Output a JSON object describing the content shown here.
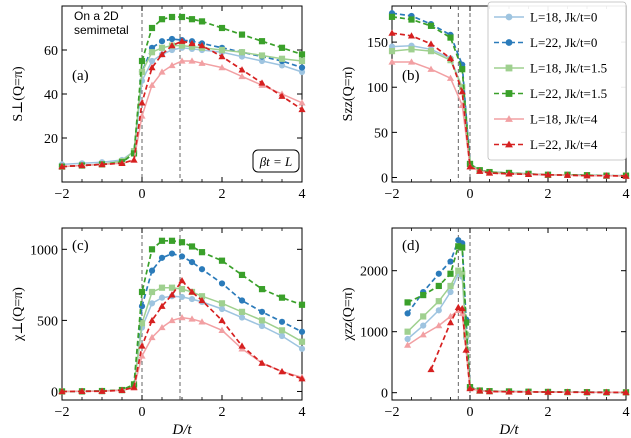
{
  "figure": {
    "annotation_line1": "On a 2D",
    "annotation_line2": "semimetal",
    "box_label": "βt = L"
  },
  "chart_data": [
    {
      "type": "line",
      "panel_label": "(a)",
      "ylabel": "S⊥(Q=π)",
      "xlabel": "",
      "xlim": [
        -2,
        4
      ],
      "ylim": [
        0,
        80
      ],
      "xticks": [
        "−2",
        "0",
        "2",
        "4"
      ],
      "yticks": [
        "20",
        "40",
        "60"
      ],
      "yticks_values": [
        20,
        40,
        60
      ],
      "vlines": [
        0,
        0.95
      ],
      "series": [
        {
          "name": "L=18, Jk/t=0",
          "color": "#9ec4e0",
          "marker": "circle",
          "dash": false,
          "x": [
            -2,
            -1.5,
            -1,
            -0.5,
            -0.2,
            0,
            0.25,
            0.5,
            0.75,
            1.0,
            1.25,
            1.5,
            2,
            2.5,
            3,
            3.5,
            4
          ],
          "y": [
            8,
            8.5,
            9,
            10,
            14,
            46,
            55,
            58,
            60,
            61,
            60.5,
            60,
            59,
            57,
            55,
            53,
            50
          ]
        },
        {
          "name": "L=22, Jk/t=0",
          "color": "#2b7bba",
          "marker": "circle",
          "dash": true,
          "x": [
            -2,
            -1.5,
            -1,
            -0.5,
            -0.2,
            0,
            0.25,
            0.5,
            0.75,
            1.0,
            1.25,
            1.5,
            2,
            2.5,
            3,
            3.5,
            4
          ],
          "y": [
            7,
            7.5,
            8,
            9,
            13,
            50,
            61,
            64,
            65,
            64.5,
            64,
            63,
            61,
            59,
            57,
            55,
            52
          ]
        },
        {
          "name": "L=18, Jk/t=1.5",
          "color": "#9fd08f",
          "marker": "square",
          "dash": false,
          "x": [
            -2,
            -1.5,
            -1,
            -0.5,
            -0.2,
            0,
            0.25,
            0.5,
            0.75,
            1.0,
            1.25,
            1.5,
            2,
            2.5,
            3,
            3.5,
            4
          ],
          "y": [
            7,
            7.5,
            8,
            9.5,
            14,
            50,
            59,
            61,
            62,
            62,
            61.5,
            61,
            60,
            59,
            57.5,
            56,
            55
          ]
        },
        {
          "name": "L=22, Jk/t=1.5",
          "color": "#3aa02a",
          "marker": "square",
          "dash": true,
          "x": [
            -2,
            -1.5,
            -1,
            -0.5,
            -0.2,
            0,
            0.25,
            0.5,
            0.75,
            1.0,
            1.25,
            1.5,
            2,
            2.5,
            3,
            3.5,
            4
          ],
          "y": [
            7,
            7.5,
            8,
            9,
            13,
            55,
            70,
            74,
            75,
            75,
            74,
            73,
            70,
            67,
            64,
            61,
            58
          ]
        },
        {
          "name": "L=18, Jk/t=4",
          "color": "#f2a0a3",
          "marker": "triangle",
          "dash": false,
          "x": [
            -2,
            -1.5,
            -1,
            -0.5,
            -0.2,
            0,
            0.25,
            0.5,
            0.75,
            1.0,
            1.25,
            1.5,
            2,
            2.5,
            3,
            3.5,
            4
          ],
          "y": [
            7,
            7.5,
            8,
            8.5,
            10,
            30,
            44,
            50,
            53,
            55,
            55,
            54,
            52,
            48,
            44,
            40,
            36
          ]
        },
        {
          "name": "L=22, Jk/t=4",
          "color": "#d62020",
          "marker": "triangle",
          "dash": true,
          "x": [
            -2,
            -1.5,
            -1,
            -0.5,
            -0.2,
            0,
            0.25,
            0.5,
            0.75,
            1.0,
            1.25,
            1.5,
            2,
            2.5,
            3,
            3.5,
            4
          ],
          "y": [
            7,
            7.5,
            8,
            8.5,
            10,
            36,
            52,
            58,
            62,
            64,
            63,
            62,
            57,
            51,
            45,
            39,
            33
          ]
        }
      ]
    },
    {
      "type": "line",
      "panel_label": "(b)",
      "ylabel": "Szz(Q=π)",
      "xlabel": "",
      "xlim": [
        -2,
        4
      ],
      "ylim": [
        -5,
        190
      ],
      "xticks": [
        "−2",
        "0",
        "2",
        "4"
      ],
      "yticks": [
        "0",
        "50",
        "100",
        "150"
      ],
      "yticks_values": [
        0,
        50,
        100,
        150
      ],
      "vlines": [
        -0.3,
        0
      ],
      "series": [
        {
          "name": "L=18, Jk/t=0",
          "color": "#9ec4e0",
          "marker": "circle",
          "dash": false,
          "x": [
            -2,
            -1.5,
            -1,
            -0.5,
            -0.2,
            0,
            0.25,
            0.5,
            1,
            1.5,
            2,
            2.5,
            3,
            3.5,
            4
          ],
          "y": [
            145,
            146,
            142,
            132,
            100,
            15,
            8,
            6,
            5,
            4,
            3,
            3,
            2.5,
            2,
            2
          ]
        },
        {
          "name": "L=22, Jk/t=0",
          "color": "#2b7bba",
          "marker": "circle",
          "dash": true,
          "x": [
            -2,
            -1.5,
            -1,
            -0.5,
            -0.2,
            0,
            0.25,
            0.5,
            1,
            1.5,
            2,
            2.5,
            3,
            3.5,
            4
          ],
          "y": [
            182,
            179,
            170,
            158,
            125,
            15,
            8,
            6,
            5,
            4,
            3,
            3,
            2.5,
            2,
            2
          ]
        },
        {
          "name": "L=18, Jk/t=1.5",
          "color": "#9fd08f",
          "marker": "square",
          "dash": false,
          "x": [
            -2,
            -1.5,
            -1,
            -0.5,
            -0.2,
            0,
            0.25,
            0.5,
            1,
            1.5,
            2,
            2.5,
            3,
            3.5,
            4
          ],
          "y": [
            140,
            142,
            140,
            130,
            100,
            15,
            8,
            6,
            5,
            4,
            3,
            3,
            2.5,
            2,
            2
          ]
        },
        {
          "name": "L=22, Jk/t=1.5",
          "color": "#3aa02a",
          "marker": "square",
          "dash": true,
          "x": [
            -2,
            -1.5,
            -1,
            -0.5,
            -0.2,
            0,
            0.25,
            0.5,
            1,
            1.5,
            2,
            2.5,
            3,
            3.5,
            4
          ],
          "y": [
            178,
            175,
            168,
            155,
            120,
            15,
            8,
            6,
            5,
            4,
            3,
            3,
            2.5,
            2,
            2
          ]
        },
        {
          "name": "L=18, Jk/t=4",
          "color": "#f2a0a3",
          "marker": "triangle",
          "dash": false,
          "x": [
            -2,
            -1.5,
            -1,
            -0.5,
            -0.2,
            0,
            0.25,
            0.5,
            1,
            1.5,
            2,
            2.5,
            3,
            3.5,
            4
          ],
          "y": [
            128,
            128,
            120,
            110,
            80,
            12,
            7,
            5,
            4,
            3.5,
            3,
            2.5,
            2,
            2,
            1.5
          ]
        },
        {
          "name": "L=22, Jk/t=4",
          "color": "#d62020",
          "marker": "triangle",
          "dash": true,
          "x": [
            -2,
            -1.5,
            -1,
            -0.5,
            -0.2,
            0,
            0.25,
            0.5,
            1,
            1.5,
            2,
            2.5,
            3,
            3.5,
            4
          ],
          "y": [
            160,
            157,
            148,
            132,
            95,
            12,
            7,
            5,
            4,
            3.5,
            3,
            2.5,
            2,
            2,
            1.5
          ]
        }
      ]
    },
    {
      "type": "line",
      "panel_label": "(c)",
      "ylabel": "χ⊥(Q=π)",
      "xlabel": "D/t",
      "xlim": [
        -2,
        4
      ],
      "ylim": [
        -60,
        1150
      ],
      "xticks": [
        "−2",
        "0",
        "2",
        "4"
      ],
      "yticks": [
        "0",
        "500",
        "1000"
      ],
      "yticks_values": [
        0,
        500,
        1000
      ],
      "vlines": [
        0,
        0.95
      ],
      "series": [
        {
          "name": "L=18, Jk/t=0",
          "color": "#9ec4e0",
          "marker": "circle",
          "dash": false,
          "x": [
            -2,
            -1.5,
            -1,
            -0.5,
            -0.2,
            0,
            0.25,
            0.5,
            0.75,
            1.0,
            1.25,
            1.5,
            2,
            2.5,
            3,
            3.5,
            4
          ],
          "y": [
            0,
            1,
            3,
            10,
            40,
            450,
            620,
            660,
            670,
            665,
            650,
            630,
            580,
            520,
            460,
            390,
            300
          ]
        },
        {
          "name": "L=22, Jk/t=0",
          "color": "#2b7bba",
          "marker": "circle",
          "dash": true,
          "x": [
            -2,
            -1.5,
            -1,
            -0.5,
            -0.2,
            0,
            0.25,
            0.5,
            0.75,
            1.0,
            1.25,
            1.5,
            2,
            2.5,
            3,
            3.5,
            4
          ],
          "y": [
            0,
            1,
            3,
            10,
            45,
            600,
            850,
            940,
            970,
            950,
            910,
            860,
            760,
            640,
            560,
            490,
            420
          ]
        },
        {
          "name": "L=18, Jk/t=1.5",
          "color": "#9fd08f",
          "marker": "square",
          "dash": false,
          "x": [
            -2,
            -1.5,
            -1,
            -0.5,
            -0.2,
            0,
            0.25,
            0.5,
            0.75,
            1.0,
            1.25,
            1.5,
            2,
            2.5,
            3,
            3.5,
            4
          ],
          "y": [
            0,
            1,
            3,
            10,
            40,
            480,
            700,
            730,
            730,
            720,
            700,
            670,
            620,
            560,
            500,
            430,
            350
          ]
        },
        {
          "name": "L=22, Jk/t=1.5",
          "color": "#3aa02a",
          "marker": "square",
          "dash": true,
          "x": [
            -2,
            -1.5,
            -1,
            -0.5,
            -0.2,
            0,
            0.25,
            0.5,
            0.75,
            1.0,
            1.25,
            1.5,
            2,
            2.5,
            3,
            3.5,
            4
          ],
          "y": [
            0,
            1,
            3,
            10,
            50,
            700,
            1000,
            1060,
            1060,
            1050,
            1020,
            980,
            920,
            820,
            720,
            660,
            610
          ]
        },
        {
          "name": "L=18, Jk/t=4",
          "color": "#f2a0a3",
          "marker": "triangle",
          "dash": false,
          "x": [
            -2,
            -1.5,
            -1,
            -0.5,
            -0.2,
            0,
            0.25,
            0.5,
            0.75,
            1.0,
            1.25,
            1.5,
            2,
            2.5,
            3,
            3.5,
            4
          ],
          "y": [
            0,
            1,
            2,
            8,
            25,
            250,
            380,
            450,
            500,
            520,
            510,
            490,
            430,
            300,
            200,
            140,
            100
          ]
        },
        {
          "name": "L=22, Jk/t=4",
          "color": "#d62020",
          "marker": "triangle",
          "dash": true,
          "x": [
            -2,
            -1.5,
            -1,
            -0.5,
            -0.2,
            0,
            0.25,
            0.5,
            0.75,
            1.0,
            1.25,
            1.5,
            2,
            2.5,
            3,
            3.5,
            4
          ],
          "y": [
            0,
            1,
            2,
            8,
            30,
            320,
            500,
            600,
            680,
            780,
            700,
            640,
            500,
            320,
            200,
            140,
            90
          ]
        }
      ]
    },
    {
      "type": "line",
      "panel_label": "(d)",
      "ylabel": "χzz(Q=π)",
      "xlabel": "D/t",
      "xlim": [
        -2,
        4
      ],
      "ylim": [
        -120,
        2700
      ],
      "xticks": [
        "−2",
        "0",
        "2",
        "4"
      ],
      "yticks": [
        "0",
        "1000",
        "2000"
      ],
      "yticks_values": [
        0,
        1000,
        2000
      ],
      "vlines": [
        -0.3,
        0
      ],
      "series": [
        {
          "name": "L=18, Jk/t=0",
          "color": "#9ec4e0",
          "marker": "circle",
          "dash": false,
          "x": [
            -1.6,
            -1.2,
            -0.8,
            -0.5,
            -0.3,
            -0.2,
            -0.1,
            0,
            0.25,
            0.5,
            1,
            1.5,
            2,
            2.5,
            3,
            3.5,
            4
          ],
          "y": [
            880,
            1100,
            1350,
            1650,
            1950,
            1900,
            900,
            90,
            35,
            25,
            20,
            15,
            12,
            10,
            8,
            6,
            5
          ]
        },
        {
          "name": "L=22, Jk/t=0",
          "color": "#2b7bba",
          "marker": "circle",
          "dash": true,
          "x": [
            -1.6,
            -1.2,
            -0.8,
            -0.5,
            -0.3,
            -0.2,
            -0.1,
            0,
            0.25,
            0.5,
            1,
            1.5,
            2,
            2.5,
            3,
            3.5,
            4
          ],
          "y": [
            1300,
            1650,
            1950,
            2150,
            2500,
            2450,
            1200,
            90,
            35,
            25,
            20,
            15,
            12,
            10,
            8,
            6,
            5
          ]
        },
        {
          "name": "L=18, Jk/t=1.5",
          "color": "#9fd08f",
          "marker": "square",
          "dash": false,
          "x": [
            -1.6,
            -1.2,
            -0.8,
            -0.5,
            -0.3,
            -0.2,
            -0.1,
            0,
            0.25,
            0.5,
            1,
            1.5,
            2,
            2.5,
            3,
            3.5,
            4
          ],
          "y": [
            1000,
            1250,
            1500,
            1750,
            2000,
            1950,
            950,
            90,
            35,
            25,
            20,
            15,
            12,
            10,
            8,
            6,
            5
          ]
        },
        {
          "name": "L=22, Jk/t=1.5",
          "color": "#3aa02a",
          "marker": "square",
          "dash": true,
          "x": [
            -1.6,
            -1.2,
            -0.8,
            -0.5,
            -0.3,
            -0.2,
            -0.1,
            0,
            0.25,
            0.5,
            1,
            1.5,
            2,
            2.5,
            3,
            3.5,
            4
          ],
          "y": [
            1480,
            1600,
            1750,
            1950,
            2400,
            2380,
            1150,
            90,
            35,
            25,
            20,
            15,
            12,
            10,
            8,
            6,
            5
          ]
        },
        {
          "name": "L=18, Jk/t=4",
          "color": "#f2a0a3",
          "marker": "triangle",
          "dash": false,
          "x": [
            -1.6,
            -1.2,
            -0.8,
            -0.5,
            -0.3,
            -0.2,
            -0.1,
            0,
            0.25,
            0.5,
            1,
            1.5,
            2,
            2.5,
            3,
            3.5,
            4
          ],
          "y": [
            780,
            950,
            1100,
            1250,
            1350,
            1300,
            700,
            70,
            30,
            20,
            15,
            12,
            10,
            8,
            6,
            5,
            4
          ]
        },
        {
          "name": "L=22, Jk/t=4",
          "color": "#d62020",
          "marker": "triangle",
          "dash": true,
          "x": [
            -1,
            -0.5,
            -0.3,
            -0.2,
            -0.1,
            0,
            0.25,
            0.5,
            1,
            1.5,
            2,
            2.5,
            3,
            3.5,
            4
          ],
          "y": [
            380,
            1150,
            1400,
            1380,
            700,
            70,
            30,
            20,
            15,
            12,
            10,
            8,
            6,
            5,
            4
          ]
        }
      ]
    }
  ]
}
